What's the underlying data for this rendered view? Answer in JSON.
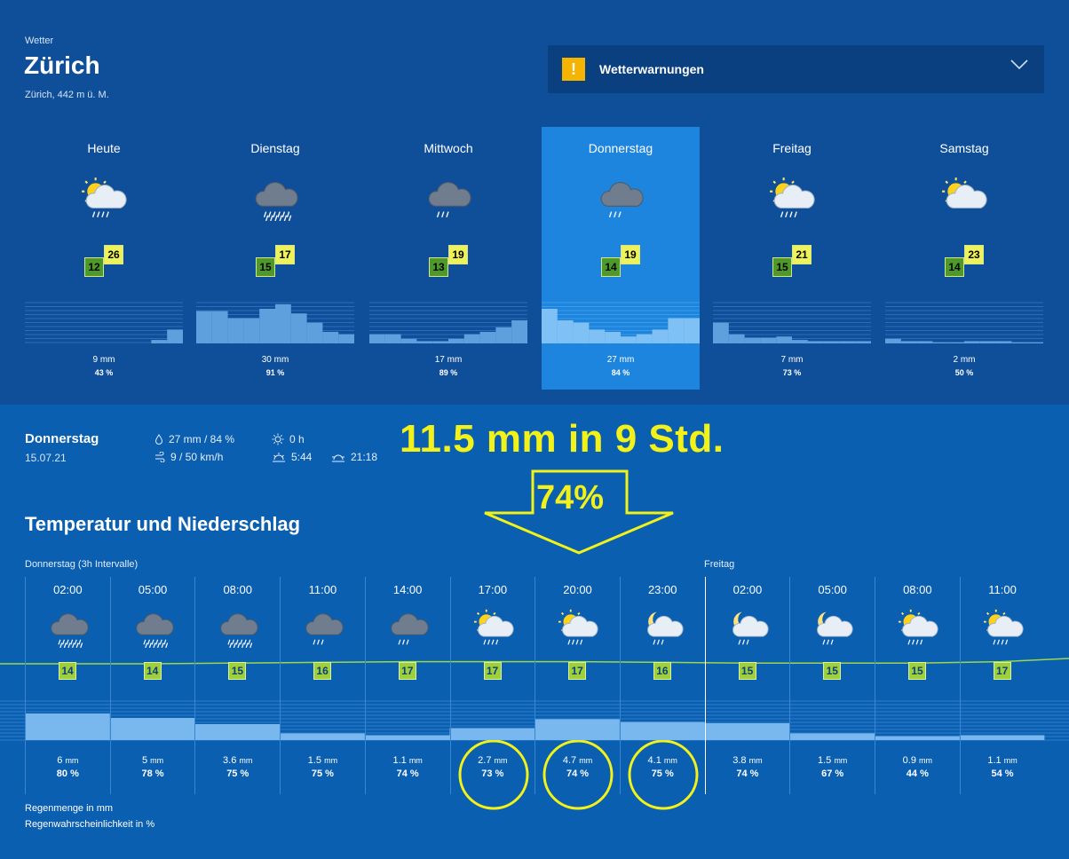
{
  "header": {
    "breadcrumb": "Wetter",
    "city": "Zürich",
    "altitude": "Zürich, 442 m ü. M.",
    "warnings_label": "Wetterwarnungen",
    "warnings_icon": "exclamation-icon"
  },
  "forecast_days": [
    {
      "name": "Heute",
      "icon": "sun-cloud-rain-icon",
      "tmin": "12",
      "tmax": "26",
      "mm": "9 mm",
      "pct": "43 %",
      "selected": false
    },
    {
      "name": "Dienstag",
      "icon": "cloud-heavy-rain-icon",
      "tmin": "15",
      "tmax": "17",
      "mm": "30 mm",
      "pct": "91 %",
      "selected": false
    },
    {
      "name": "Mittwoch",
      "icon": "cloud-rain-icon",
      "tmin": "13",
      "tmax": "19",
      "mm": "17 mm",
      "pct": "89 %",
      "selected": false
    },
    {
      "name": "Donnerstag",
      "icon": "cloud-rain-icon",
      "tmin": "14",
      "tmax": "19",
      "mm": "27 mm",
      "pct": "84 %",
      "selected": true
    },
    {
      "name": "Freitag",
      "icon": "sun-cloud-rain-icon",
      "tmin": "15",
      "tmax": "21",
      "mm": "7 mm",
      "pct": "73 %",
      "selected": false
    },
    {
      "name": "Samstag",
      "icon": "sun-cloud-icon",
      "tmin": "14",
      "tmax": "23",
      "mm": "2 mm",
      "pct": "50 %",
      "selected": false
    }
  ],
  "detail": {
    "day": "Donnerstag",
    "date": "15.07.21",
    "precip": "27 mm / 84 %",
    "wind": "9 / 50 km/h",
    "sunshine": "0 h",
    "sunrise": "5:44",
    "sunset": "21:18"
  },
  "annotation": {
    "headline": "11.5 mm in 9 Std.",
    "percent": "74%"
  },
  "section": {
    "title": "Temperatur und Niederschlag",
    "interval_label": "Donnerstag (3h Intervalle)",
    "next_day_label": "Freitag"
  },
  "slots": [
    {
      "time": "02:00",
      "icon": "cloud-heavy-rain-icon",
      "temp": "14",
      "mm": "6",
      "pct": "80 %",
      "circled": false
    },
    {
      "time": "05:00",
      "icon": "cloud-heavy-rain-icon",
      "temp": "14",
      "mm": "5",
      "pct": "78 %",
      "circled": false
    },
    {
      "time": "08:00",
      "icon": "cloud-heavy-rain-icon",
      "temp": "15",
      "mm": "3.6",
      "pct": "75 %",
      "circled": false
    },
    {
      "time": "11:00",
      "icon": "cloud-rain-icon",
      "temp": "16",
      "mm": "1.5",
      "pct": "75 %",
      "circled": false
    },
    {
      "time": "14:00",
      "icon": "cloud-rain-icon",
      "temp": "17",
      "mm": "1.1",
      "pct": "74 %",
      "circled": false
    },
    {
      "time": "17:00",
      "icon": "sun-cloud-rain-icon",
      "temp": "17",
      "mm": "2.7",
      "pct": "73 %",
      "circled": true
    },
    {
      "time": "20:00",
      "icon": "sun-cloud-rain-icon",
      "temp": "17",
      "mm": "4.7",
      "pct": "74 %",
      "circled": true
    },
    {
      "time": "23:00",
      "icon": "moon-cloud-rain-icon",
      "temp": "16",
      "mm": "4.1",
      "pct": "75 %",
      "circled": true
    },
    {
      "time": "02:00",
      "icon": "moon-cloud-rain-icon",
      "temp": "15",
      "mm": "3.8",
      "pct": "74 %",
      "circled": false
    },
    {
      "time": "05:00",
      "icon": "moon-cloud-rain-icon",
      "temp": "15",
      "mm": "1.5",
      "pct": "67 %",
      "circled": false
    },
    {
      "time": "08:00",
      "icon": "sun-cloud-rain-icon",
      "temp": "15",
      "mm": "0.9",
      "pct": "44 %",
      "circled": false
    },
    {
      "time": "11:00",
      "icon": "sun-cloud-rain-icon",
      "temp": "17",
      "mm": "1.1",
      "pct": "54 %",
      "circled": false
    }
  ],
  "units": {
    "mm": "mm"
  },
  "legend": {
    "amount": "Regenmenge in mm",
    "probability": "Regenwahrscheinlichkeit in %"
  },
  "colors": {
    "top_band": "#0f4f9a",
    "body": "#0a5fb0",
    "selected_day": "#1d85dd",
    "annotation": "#f2f21a",
    "temp_min": "#4d9a2a",
    "temp_max": "#eef25a"
  }
}
